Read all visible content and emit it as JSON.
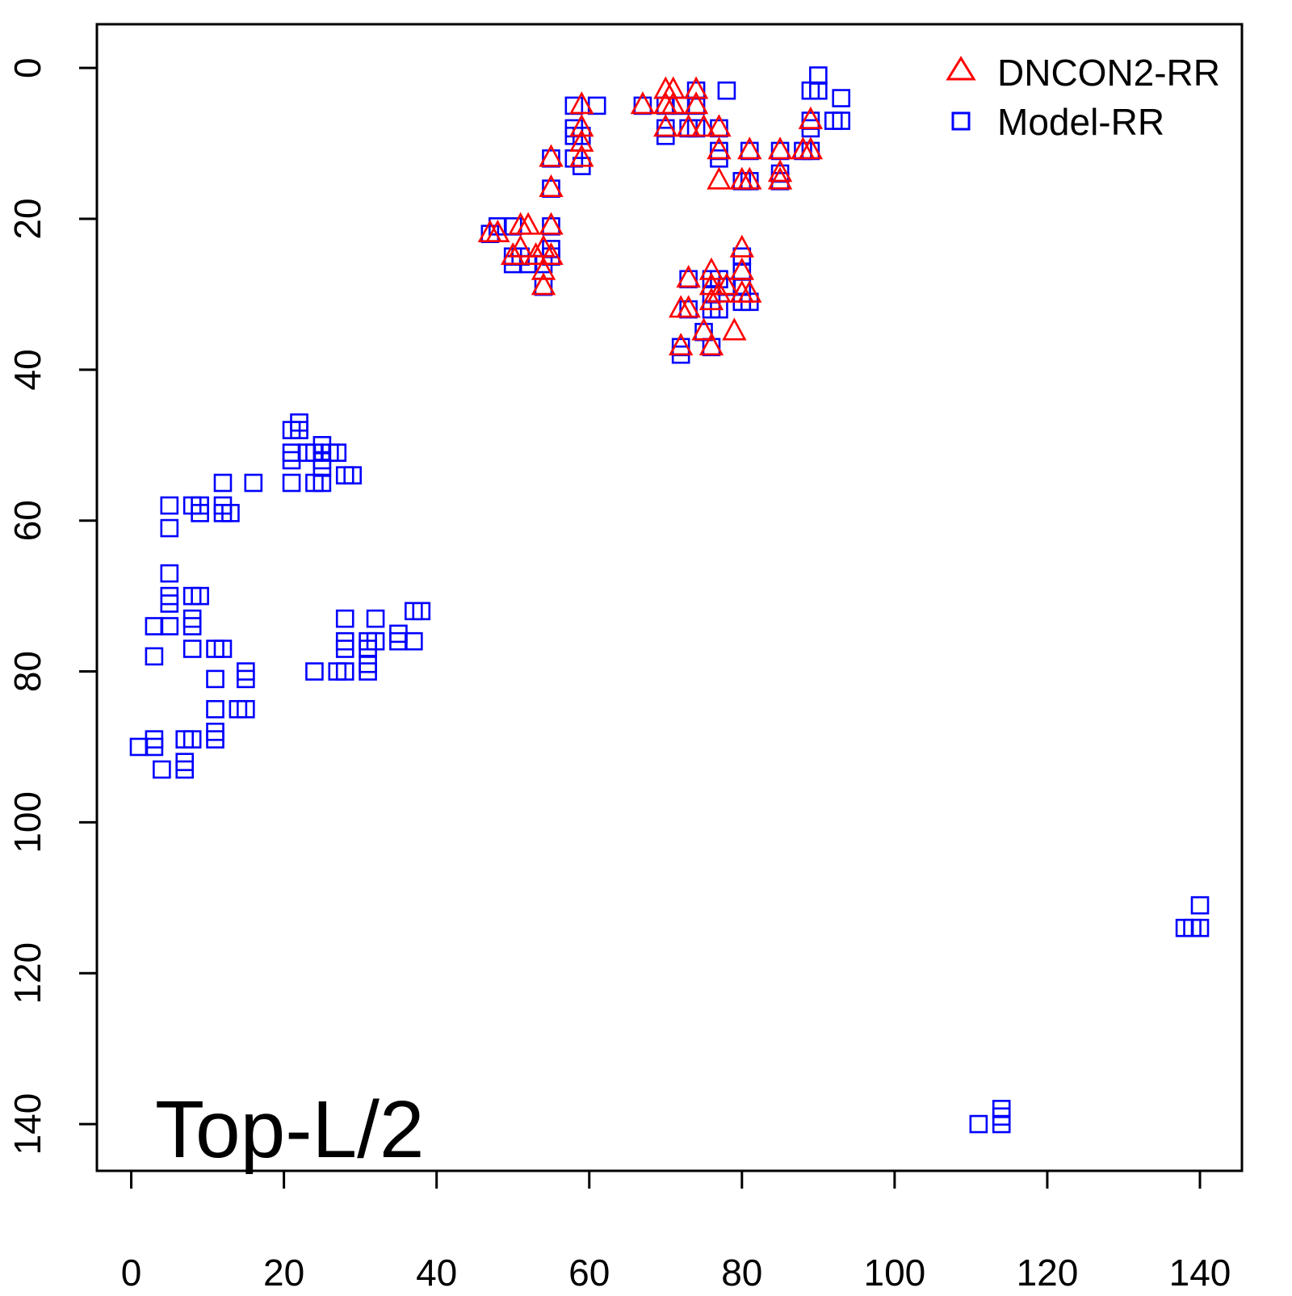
{
  "chart_data": {
    "type": "scatter",
    "title": "",
    "xlabel": "",
    "ylabel": "",
    "annotation": "Top-L/2",
    "xlim": [
      -4.5,
      145.5
    ],
    "ylim": [
      146.2,
      -5.8
    ],
    "y_reversed": true,
    "x_ticks": [
      "0",
      "20",
      "40",
      "60",
      "80",
      "100",
      "120",
      "140"
    ],
    "y_ticks": [
      "0",
      "20",
      "40",
      "60",
      "80",
      "100",
      "120",
      "140"
    ],
    "grid": false,
    "legend_position": "top-right",
    "series": [
      {
        "name": "DNCON2-RR",
        "marker": "triangle-open",
        "color": "#ff0000",
        "points": [
          [
            47,
            22
          ],
          [
            48,
            22
          ],
          [
            50,
            25
          ],
          [
            51,
            21
          ],
          [
            52,
            21
          ],
          [
            51,
            24
          ],
          [
            53,
            25
          ],
          [
            54,
            24
          ],
          [
            54,
            27
          ],
          [
            54,
            29
          ],
          [
            55,
            25
          ],
          [
            55,
            21
          ],
          [
            55,
            16
          ],
          [
            55,
            12
          ],
          [
            59,
            5
          ],
          [
            59,
            8
          ],
          [
            59,
            10
          ],
          [
            59,
            12
          ],
          [
            67,
            5
          ],
          [
            70,
            3
          ],
          [
            71,
            3
          ],
          [
            70,
            5
          ],
          [
            71,
            5
          ],
          [
            70,
            8
          ],
          [
            73,
            8
          ],
          [
            74,
            3
          ],
          [
            74,
            5
          ],
          [
            75,
            8
          ],
          [
            77,
            8
          ],
          [
            77,
            11
          ],
          [
            77,
            15
          ],
          [
            81,
            11
          ],
          [
            80,
            15
          ],
          [
            81,
            15
          ],
          [
            85,
            11
          ],
          [
            85,
            14
          ],
          [
            85,
            15
          ],
          [
            89,
            7
          ],
          [
            88,
            11
          ],
          [
            89,
            11
          ],
          [
            73,
            28
          ],
          [
            72,
            32
          ],
          [
            73,
            32
          ],
          [
            76,
            27
          ],
          [
            76,
            29
          ],
          [
            77,
            30
          ],
          [
            78,
            29
          ],
          [
            76,
            31
          ],
          [
            79,
            35
          ],
          [
            80,
            24
          ],
          [
            80,
            27
          ],
          [
            80,
            30
          ],
          [
            81,
            30
          ],
          [
            75,
            35
          ],
          [
            76,
            37
          ],
          [
            72,
            37
          ]
        ]
      },
      {
        "name": "Model-RR",
        "marker": "square-open",
        "color": "#0000ff",
        "points": [
          [
            47,
            22
          ],
          [
            48,
            21
          ],
          [
            50,
            21
          ],
          [
            50,
            25
          ],
          [
            50,
            26
          ],
          [
            51,
            25
          ],
          [
            52,
            26
          ],
          [
            54,
            26
          ],
          [
            54,
            29
          ],
          [
            55,
            21
          ],
          [
            55,
            24
          ],
          [
            55,
            25
          ],
          [
            55,
            16
          ],
          [
            55,
            12
          ],
          [
            58,
            5
          ],
          [
            58,
            8
          ],
          [
            58,
            9
          ],
          [
            59,
            9
          ],
          [
            58,
            12
          ],
          [
            59,
            13
          ],
          [
            61,
            5
          ],
          [
            67,
            5
          ],
          [
            70,
            5
          ],
          [
            70,
            8
          ],
          [
            70,
            9
          ],
          [
            72,
            5
          ],
          [
            73,
            8
          ],
          [
            74,
            3
          ],
          [
            74,
            5
          ],
          [
            74,
            8
          ],
          [
            77,
            8
          ],
          [
            77,
            11
          ],
          [
            77,
            12
          ],
          [
            78,
            3
          ],
          [
            80,
            15
          ],
          [
            81,
            15
          ],
          [
            81,
            11
          ],
          [
            85,
            11
          ],
          [
            85,
            14
          ],
          [
            85,
            15
          ],
          [
            88,
            11
          ],
          [
            89,
            3
          ],
          [
            90,
            3
          ],
          [
            89,
            7
          ],
          [
            89,
            8
          ],
          [
            89,
            11
          ],
          [
            90,
            1
          ],
          [
            92,
            7
          ],
          [
            93,
            4
          ],
          [
            93,
            7
          ],
          [
            73,
            28
          ],
          [
            73,
            32
          ],
          [
            76,
            28
          ],
          [
            76,
            30
          ],
          [
            77,
            28
          ],
          [
            76,
            32
          ],
          [
            77,
            32
          ],
          [
            78,
            29
          ],
          [
            80,
            25
          ],
          [
            80,
            27
          ],
          [
            80,
            29
          ],
          [
            80,
            31
          ],
          [
            81,
            31
          ],
          [
            75,
            35
          ],
          [
            76,
            37
          ],
          [
            72,
            37
          ],
          [
            72,
            38
          ],
          [
            21,
            48
          ],
          [
            22,
            47
          ],
          [
            22,
            48
          ],
          [
            21,
            51
          ],
          [
            21,
            52
          ],
          [
            21,
            55
          ],
          [
            23,
            51
          ],
          [
            24,
            51
          ],
          [
            25,
            50
          ],
          [
            25,
            52
          ],
          [
            25,
            53
          ],
          [
            25,
            55
          ],
          [
            24,
            55
          ],
          [
            26,
            51
          ],
          [
            27,
            51
          ],
          [
            28,
            54
          ],
          [
            29,
            54
          ],
          [
            16,
            55
          ],
          [
            12,
            55
          ],
          [
            5,
            58
          ],
          [
            5,
            61
          ],
          [
            8,
            58
          ],
          [
            9,
            58
          ],
          [
            9,
            59
          ],
          [
            12,
            58
          ],
          [
            12,
            59
          ],
          [
            13,
            59
          ],
          [
            5,
            67
          ],
          [
            5,
            70
          ],
          [
            5,
            71
          ],
          [
            5,
            74
          ],
          [
            3,
            74
          ],
          [
            3,
            78
          ],
          [
            8,
            70
          ],
          [
            9,
            70
          ],
          [
            8,
            73
          ],
          [
            8,
            74
          ],
          [
            8,
            77
          ],
          [
            11,
            77
          ],
          [
            12,
            77
          ],
          [
            11,
            81
          ],
          [
            15,
            80
          ],
          [
            15,
            81
          ],
          [
            11,
            85
          ],
          [
            14,
            85
          ],
          [
            15,
            85
          ],
          [
            11,
            88
          ],
          [
            11,
            89
          ],
          [
            1,
            90
          ],
          [
            3,
            89
          ],
          [
            3,
            90
          ],
          [
            4,
            93
          ],
          [
            7,
            89
          ],
          [
            8,
            89
          ],
          [
            7,
            92
          ],
          [
            7,
            93
          ],
          [
            28,
            73
          ],
          [
            28,
            76
          ],
          [
            28,
            77
          ],
          [
            28,
            80
          ],
          [
            24,
            80
          ],
          [
            27,
            80
          ],
          [
            31,
            76
          ],
          [
            31,
            77
          ],
          [
            31,
            79
          ],
          [
            31,
            80
          ],
          [
            32,
            73
          ],
          [
            32,
            76
          ],
          [
            35,
            75
          ],
          [
            35,
            76
          ],
          [
            37,
            72
          ],
          [
            38,
            72
          ],
          [
            37,
            76
          ],
          [
            140,
            111
          ],
          [
            138,
            114
          ],
          [
            139,
            114
          ],
          [
            140,
            114
          ],
          [
            111,
            140
          ],
          [
            114,
            138
          ],
          [
            114,
            139
          ],
          [
            114,
            140
          ]
        ]
      }
    ]
  }
}
